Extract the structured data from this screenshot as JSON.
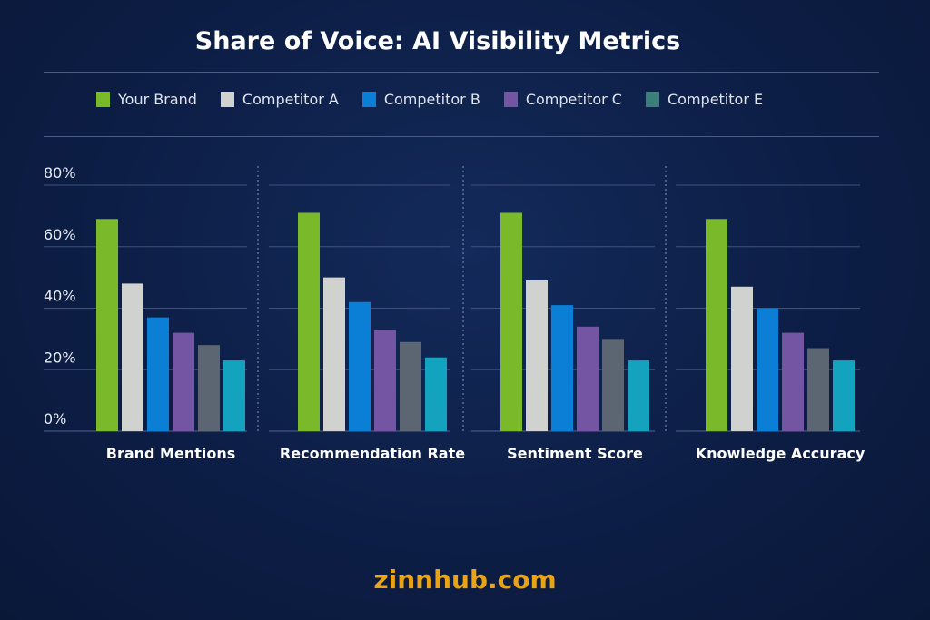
{
  "chart_data": {
    "type": "bar",
    "title": "Share of Voice: AI Visibility Metrics",
    "categories": [
      "Brand Mentions",
      "Recommendation Rate",
      "Sentiment Score",
      "Knowledge Accuracy"
    ],
    "ylim": [
      0,
      80
    ],
    "yticks": [
      "0%",
      "20%",
      "40%",
      "60%",
      "80%"
    ],
    "grid": true,
    "legend_position": "top",
    "series": [
      {
        "name": "Your Brand",
        "color": "#7aba2a",
        "values": [
          69,
          71,
          71,
          69
        ]
      },
      {
        "name": "Competitor A",
        "color": "#cfd2cf",
        "values": [
          48,
          50,
          49,
          47
        ]
      },
      {
        "name": "Competitor B",
        "color": "#0b7fd6",
        "values": [
          37,
          42,
          41,
          40
        ]
      },
      {
        "name": "Competitor C",
        "color": "#7455a3",
        "values": [
          32,
          33,
          34,
          32
        ]
      },
      {
        "name": "Competitor E",
        "color": "#5c6672",
        "legend_color": "#3c7f7a",
        "values": [
          28,
          29,
          30,
          27
        ]
      },
      {
        "color": "#13a3bf",
        "values": [
          23,
          24,
          23,
          23
        ]
      }
    ]
  },
  "watermark": "zinnhub.com"
}
